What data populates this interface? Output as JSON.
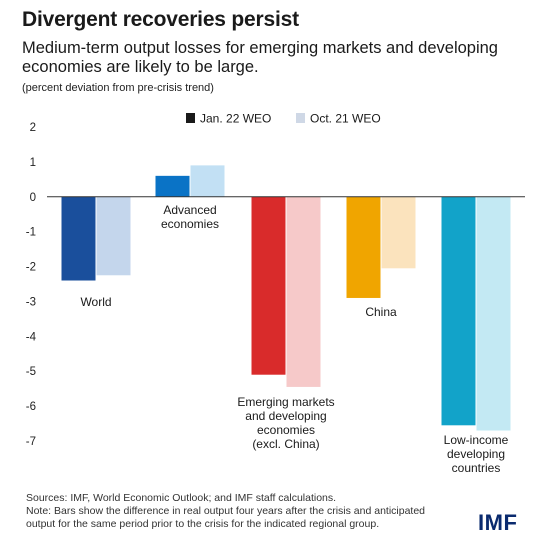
{
  "title": "Divergent recoveries persist",
  "subtitle": "Medium-term output losses for emerging markets and developing economies are likely to be large.",
  "unit_note": "(percent deviation from pre-crisis trend)",
  "footer": {
    "sources": "Sources: IMF, World Economic Outlook; and IMF staff calculations.",
    "note_line1": "Note: Bars show the difference in real output four years after the crisis and anticipated",
    "note_line2": "output for the same period prior to the crisis for the indicated regional group."
  },
  "logo": "IMF",
  "chart_data": {
    "type": "bar",
    "categories": [
      "World",
      "Advanced economies",
      "Emerging markets and developing economies (excl. China)",
      "China",
      "Low-income developing countries"
    ],
    "category_label_lines": [
      [
        "World"
      ],
      [
        "Advanced",
        "economies"
      ],
      [
        "Emerging markets",
        "and developing",
        "economies",
        "(excl. China)"
      ],
      [
        "China"
      ],
      [
        "Low-income",
        "developing",
        "countries"
      ]
    ],
    "series": [
      {
        "name": "Jan. 22 WEO",
        "values": [
          -2.4,
          0.6,
          -5.1,
          -2.9,
          -6.55
        ],
        "colors": [
          "#1a4f9c",
          "#0a73c6",
          "#d92b2b",
          "#f0a500",
          "#12a3c9"
        ]
      },
      {
        "name": "Oct. 21 WEO",
        "values": [
          -2.25,
          0.9,
          -5.45,
          -2.05,
          -6.7
        ],
        "colors": [
          "#c4d6ec",
          "#c2e0f4",
          "#f6c9c9",
          "#fbe3bd",
          "#c3e9f3"
        ]
      }
    ],
    "legend_colors": [
      "#1a1a1a",
      "#cfd8e6"
    ],
    "yticks": [
      2,
      1,
      0,
      -1,
      -2,
      -3,
      -4,
      -5,
      -6,
      -7
    ],
    "ylim": [
      -7,
      2
    ],
    "legend_position": "top-center",
    "grid": false
  }
}
